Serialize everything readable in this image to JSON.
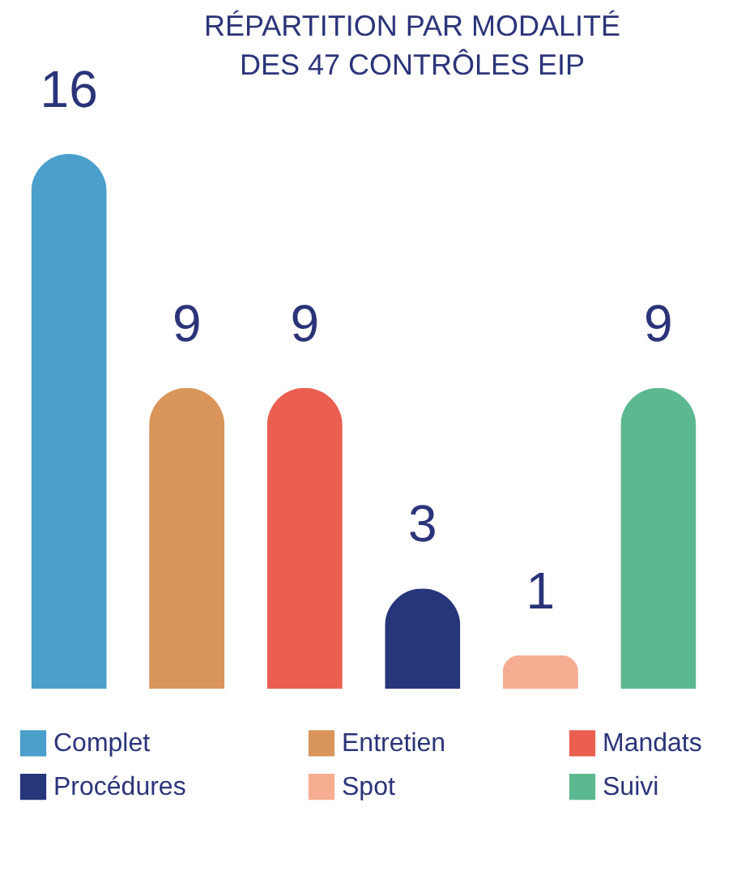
{
  "chart_data": {
    "type": "bar",
    "title": "RÉPARTITION PAR MODALITÉ\nDES 47 CONTRÔLES EIP",
    "categories": [
      null,
      null,
      null,
      null,
      null,
      null
    ],
    "series": [
      {
        "name": "Complet",
        "color": "#4a9fcb",
        "values": [
          16,
          null,
          null,
          null,
          null,
          null
        ]
      },
      {
        "name": "Entretien",
        "color": "#d9955a",
        "values": [
          null,
          9,
          null,
          null,
          null,
          null
        ]
      },
      {
        "name": "Mandats",
        "color": "#ea5f50",
        "values": [
          null,
          null,
          9,
          null,
          null,
          null
        ]
      },
      {
        "name": "Procédures",
        "color": "#27367a",
        "values": [
          null,
          null,
          null,
          3,
          null,
          null
        ]
      },
      {
        "name": "Spot",
        "color": "#f6ad92",
        "values": [
          null,
          null,
          null,
          null,
          1,
          null
        ]
      },
      {
        "name": "Suivi",
        "color": "#5cb891",
        "values": [
          null,
          null,
          null,
          null,
          null,
          9
        ]
      }
    ],
    "stacked": true,
    "data_labels": true,
    "legend": "bottom"
  }
}
